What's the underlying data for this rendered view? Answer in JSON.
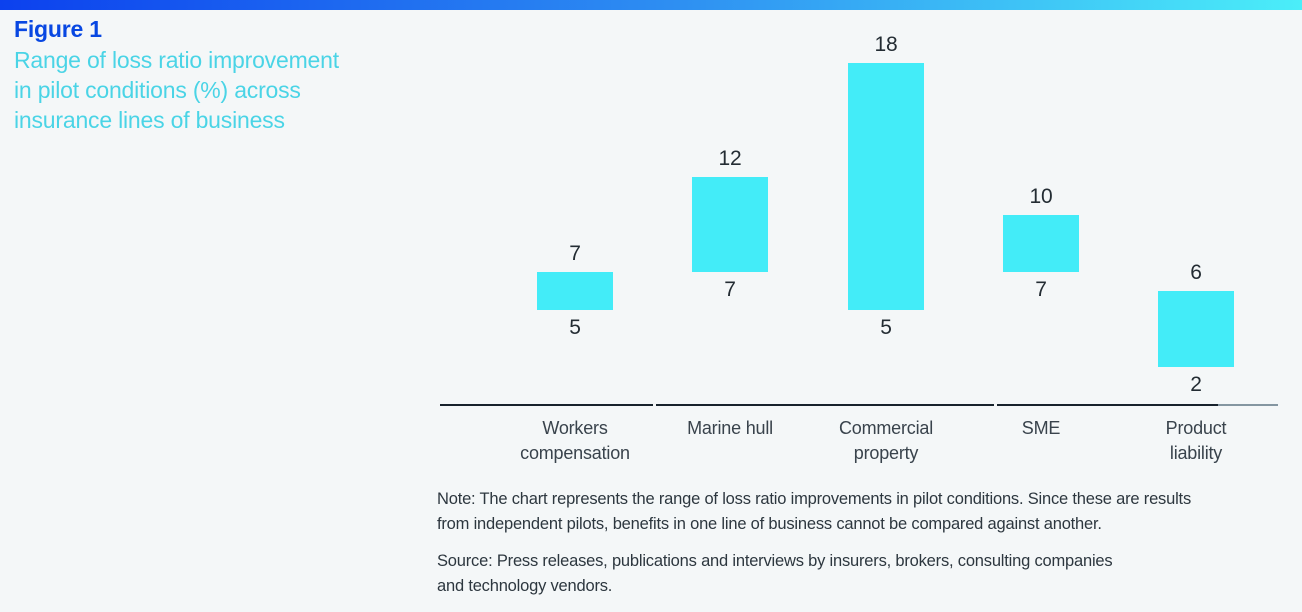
{
  "figure": {
    "label": "Figure 1",
    "title_lines": [
      "Range of loss ratio improvement",
      "in pilot conditions (%) across",
      "insurance lines of business"
    ]
  },
  "chart_data": {
    "type": "bar",
    "subtype": "floating-range-columns",
    "title": "Range of loss ratio improvement in pilot conditions (%) across insurance lines of business",
    "xlabel": "",
    "ylabel": "Loss ratio improvement in pilot conditions (%)",
    "ylim": [
      0,
      20
    ],
    "grid": false,
    "legend": false,
    "y_axis_shown": false,
    "bar_color": "#43ecf8",
    "categories": [
      "Workers compensation",
      "Marine hull",
      "Commercial property",
      "SME",
      "Product liability"
    ],
    "items": [
      {
        "category": "Workers compensation",
        "label_lines": [
          "Workers",
          "compensation"
        ],
        "low": 5,
        "high": 7
      },
      {
        "category": "Marine hull",
        "label_lines": [
          "Marine hull"
        ],
        "low": 7,
        "high": 12
      },
      {
        "category": "Commercial property",
        "label_lines": [
          "Commercial",
          "property"
        ],
        "low": 5,
        "high": 18
      },
      {
        "category": "SME",
        "label_lines": [
          "SME"
        ],
        "low": 7,
        "high": 10
      },
      {
        "category": "Product liability",
        "label_lines": [
          "Product",
          "liability"
        ],
        "low": 2,
        "high": 6
      }
    ]
  },
  "footnotes": {
    "note_lines": [
      "Note: The chart represents the range of loss ratio improvements in pilot conditions. Since these are results",
      "from independent pilots, benefits in one line of business cannot be compared against another."
    ],
    "source_lines": [
      "Source: Press releases, publications and interviews by insurers, brokers, consulting companies",
      "and technology vendors."
    ]
  },
  "colors": {
    "background": "#f4f7f8",
    "bar": "#43ecf8",
    "figure_label": "#0847e2",
    "figure_title": "#4ad4e6",
    "value_label": "#232c33",
    "category_label": "#39434c",
    "axis_line": "#17222c",
    "axis_line_light": "#8496a1",
    "footnote_text": "#2d373f",
    "accent_gradient_start": "#0c41ee",
    "accent_gradient_mid": "#2e8ff2",
    "accent_gradient_end": "#4beef9"
  }
}
